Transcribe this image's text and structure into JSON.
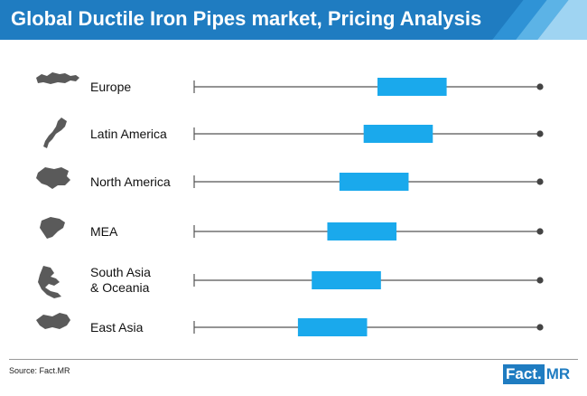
{
  "header": {
    "title": "Global Ductile Iron Pipes market, Pricing Analysis"
  },
  "footer": {
    "source": "Source: Fact.MR",
    "brand_left": "Fact.",
    "brand_right": "MR"
  },
  "colors": {
    "header_bg": "#1f7cc1",
    "box": "#1aa9ec",
    "axis": "#555555",
    "icon": "#5a5a5a"
  },
  "chart_data": {
    "type": "range",
    "categories": [
      {
        "label": "Europe",
        "icon": "europe-map-icon"
      },
      {
        "label": "Latin America",
        "icon": "latin-america-map-icon"
      },
      {
        "label": "North America",
        "icon": "north-america-map-icon"
      },
      {
        "label": "MEA",
        "icon": "mea-map-icon"
      },
      {
        "label": "South Asia\n& Oceania",
        "icon": "south-asia-oceania-map-icon"
      },
      {
        "label": "East Asia",
        "icon": "east-asia-map-icon"
      }
    ],
    "ranges": [
      [
        0.53,
        0.73
      ],
      [
        0.49,
        0.69
      ],
      [
        0.42,
        0.62
      ],
      [
        0.385,
        0.585
      ],
      [
        0.34,
        0.54
      ],
      [
        0.3,
        0.5
      ]
    ],
    "xlim": [
      0,
      1
    ],
    "grid": false,
    "legend": "none"
  }
}
